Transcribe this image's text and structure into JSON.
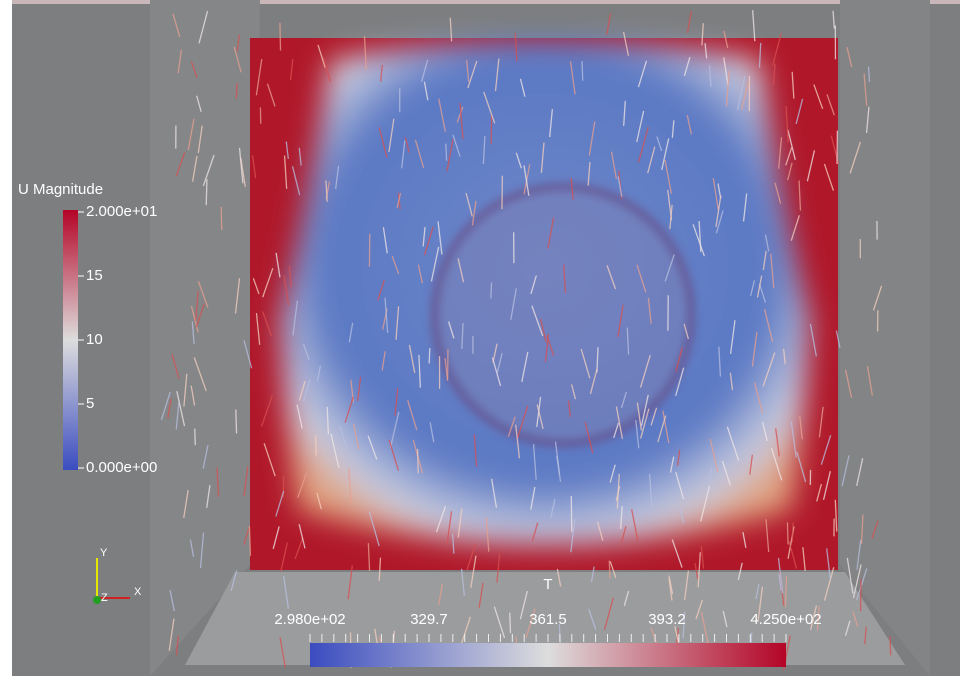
{
  "u_legend": {
    "title": "U Magnitude",
    "labels": [
      "2.000e+01",
      "15",
      "10",
      "5",
      "0.000e+00"
    ]
  },
  "t_legend": {
    "title": "T",
    "labels": [
      "2.980e+02",
      "329.7",
      "361.5",
      "393.2",
      "4.250e+02"
    ]
  },
  "axes": {
    "y": "Y",
    "z": "Z",
    "x": "X"
  }
}
